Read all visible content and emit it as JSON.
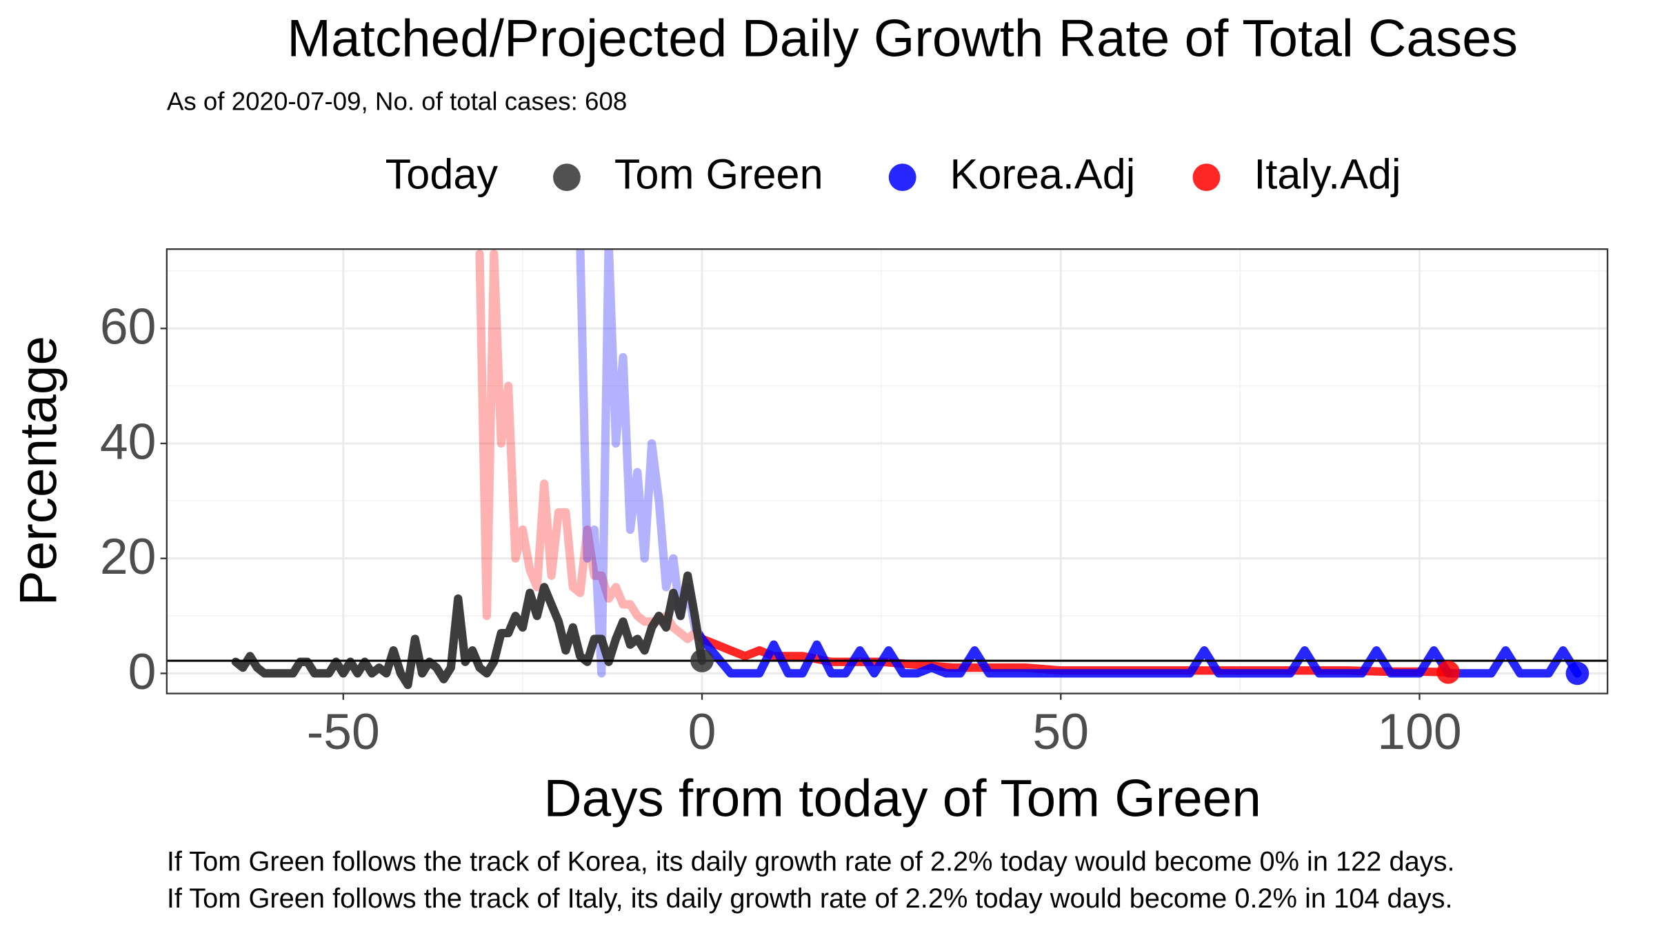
{
  "chart_data": {
    "type": "line",
    "title": "Matched/Projected Daily Growth Rate of Total Cases",
    "subtitle": "As of 2020-07-09, No. of total cases: 608",
    "legend_title": "Today",
    "x_label": "Days from today of Tom Green",
    "y_label": "Percentage",
    "captions": [
      "If Tom Green follows the track of Korea, its daily growth rate of 2.2% today would become 0% in 122 days.",
      "If Tom Green follows the track of Italy, its daily growth rate of 2.2% today would become 0.2% in 104 days."
    ],
    "xlim": [
      -74.6,
      126.2
    ],
    "ylim": [
      -3.5,
      73.8
    ],
    "xticks": [
      -50,
      0,
      50,
      100
    ],
    "yticks": [
      0,
      20,
      40,
      60
    ],
    "x_minor_ticks": [
      -25,
      25,
      75,
      125
    ],
    "y_minor_ticks": [
      10,
      30,
      50,
      70
    ],
    "grid": true,
    "reference_line": 2.2,
    "series": [
      {
        "name": "Tom Green",
        "color": "#333333",
        "x": [
          -65,
          -64,
          -63,
          -62,
          -61,
          -60,
          -59,
          -58,
          -57,
          -56,
          -55,
          -54,
          -53,
          -52,
          -51,
          -50,
          -49,
          -48,
          -47,
          -46,
          -45,
          -44,
          -43,
          -42,
          -41,
          -40,
          -39,
          -38,
          -37,
          -36,
          -35,
          -34,
          -33,
          -32,
          -31,
          -30,
          -29,
          -28,
          -27,
          -26,
          -25,
          -24,
          -23,
          -22,
          -21,
          -20,
          -19,
          -18,
          -17,
          -16,
          -15,
          -14,
          -13,
          -12,
          -11,
          -10,
          -9,
          -8,
          -7,
          -6,
          -5,
          -4,
          -3,
          -2,
          -1,
          0
        ],
        "values": [
          2,
          1,
          3,
          1,
          0,
          0,
          0,
          0,
          0,
          2,
          2,
          0,
          0,
          0,
          2,
          0,
          2,
          0,
          2,
          0,
          1,
          0,
          4,
          0,
          -2,
          6,
          0,
          2,
          1,
          -1,
          1,
          13,
          2,
          4,
          1,
          0,
          2,
          7,
          7,
          10,
          8,
          14,
          10,
          15,
          12,
          9,
          4,
          8,
          3,
          2,
          6,
          6,
          2,
          6,
          9,
          5,
          6,
          4,
          8,
          10,
          8,
          14,
          10,
          17,
          10,
          2.2
        ]
      },
      {
        "name": "Korea.Adj",
        "color": "#0000ff",
        "x": [
          -17,
          -16,
          -15,
          -14,
          -13,
          -12,
          -11,
          -10,
          -9,
          -8,
          -7,
          -6,
          -5,
          -4,
          -3,
          -2,
          -1,
          0,
          2,
          4,
          6,
          8,
          10,
          12,
          14,
          16,
          18,
          20,
          22,
          24,
          26,
          28,
          30,
          32,
          34,
          36,
          38,
          40,
          42,
          44,
          46,
          48,
          50,
          52,
          54,
          56,
          58,
          60,
          62,
          64,
          66,
          68,
          70,
          72,
          74,
          76,
          78,
          80,
          82,
          84,
          86,
          88,
          90,
          92,
          94,
          96,
          98,
          100,
          102,
          104,
          106,
          108,
          110,
          112,
          114,
          116,
          118,
          120,
          122
        ],
        "values": [
          75,
          20,
          25,
          0,
          75,
          40,
          55,
          25,
          35,
          20,
          40,
          30,
          15,
          20,
          10,
          15,
          8,
          6,
          3,
          0,
          0,
          0,
          5,
          0,
          0,
          5,
          0,
          0,
          4,
          0,
          4,
          0,
          0,
          1,
          0,
          0,
          4,
          0,
          0,
          0,
          0,
          0,
          0,
          0,
          0,
          0,
          0,
          0,
          0,
          0,
          0,
          0,
          4,
          0,
          0,
          0,
          0,
          0,
          0,
          4,
          0,
          0,
          0,
          0,
          4,
          0,
          0,
          0,
          4,
          0,
          0,
          0,
          0,
          4,
          0,
          0,
          0,
          4,
          0
        ]
      },
      {
        "name": "Italy.Adj",
        "color": "#ff0000",
        "x": [
          -31,
          -30,
          -29,
          -28,
          -27,
          -26,
          -25,
          -24,
          -23,
          -22,
          -21,
          -20,
          -19,
          -18,
          -17,
          -16,
          -15,
          -14,
          -13,
          -12,
          -11,
          -10,
          -9,
          -8,
          -7,
          -6,
          -5,
          -4,
          -3,
          -2,
          -1,
          0,
          2,
          4,
          6,
          8,
          10,
          12,
          14,
          16,
          18,
          20,
          25,
          30,
          35,
          40,
          45,
          50,
          55,
          60,
          65,
          70,
          75,
          80,
          85,
          90,
          95,
          100,
          104
        ],
        "values": [
          73,
          10,
          73,
          40,
          50,
          20,
          25,
          18,
          15,
          33,
          17,
          28,
          28,
          15,
          14,
          25,
          17,
          17,
          13,
          15,
          12,
          12,
          10,
          9,
          9,
          9,
          10,
          8,
          7,
          6,
          7,
          6,
          5,
          4,
          3,
          4,
          3,
          3,
          3,
          2.5,
          2,
          2,
          2,
          1.5,
          1,
          1,
          1,
          0.5,
          0.5,
          0.5,
          0.5,
          0.5,
          0.5,
          0.5,
          0.5,
          0.5,
          0.3,
          0.3,
          0.2
        ]
      }
    ]
  }
}
